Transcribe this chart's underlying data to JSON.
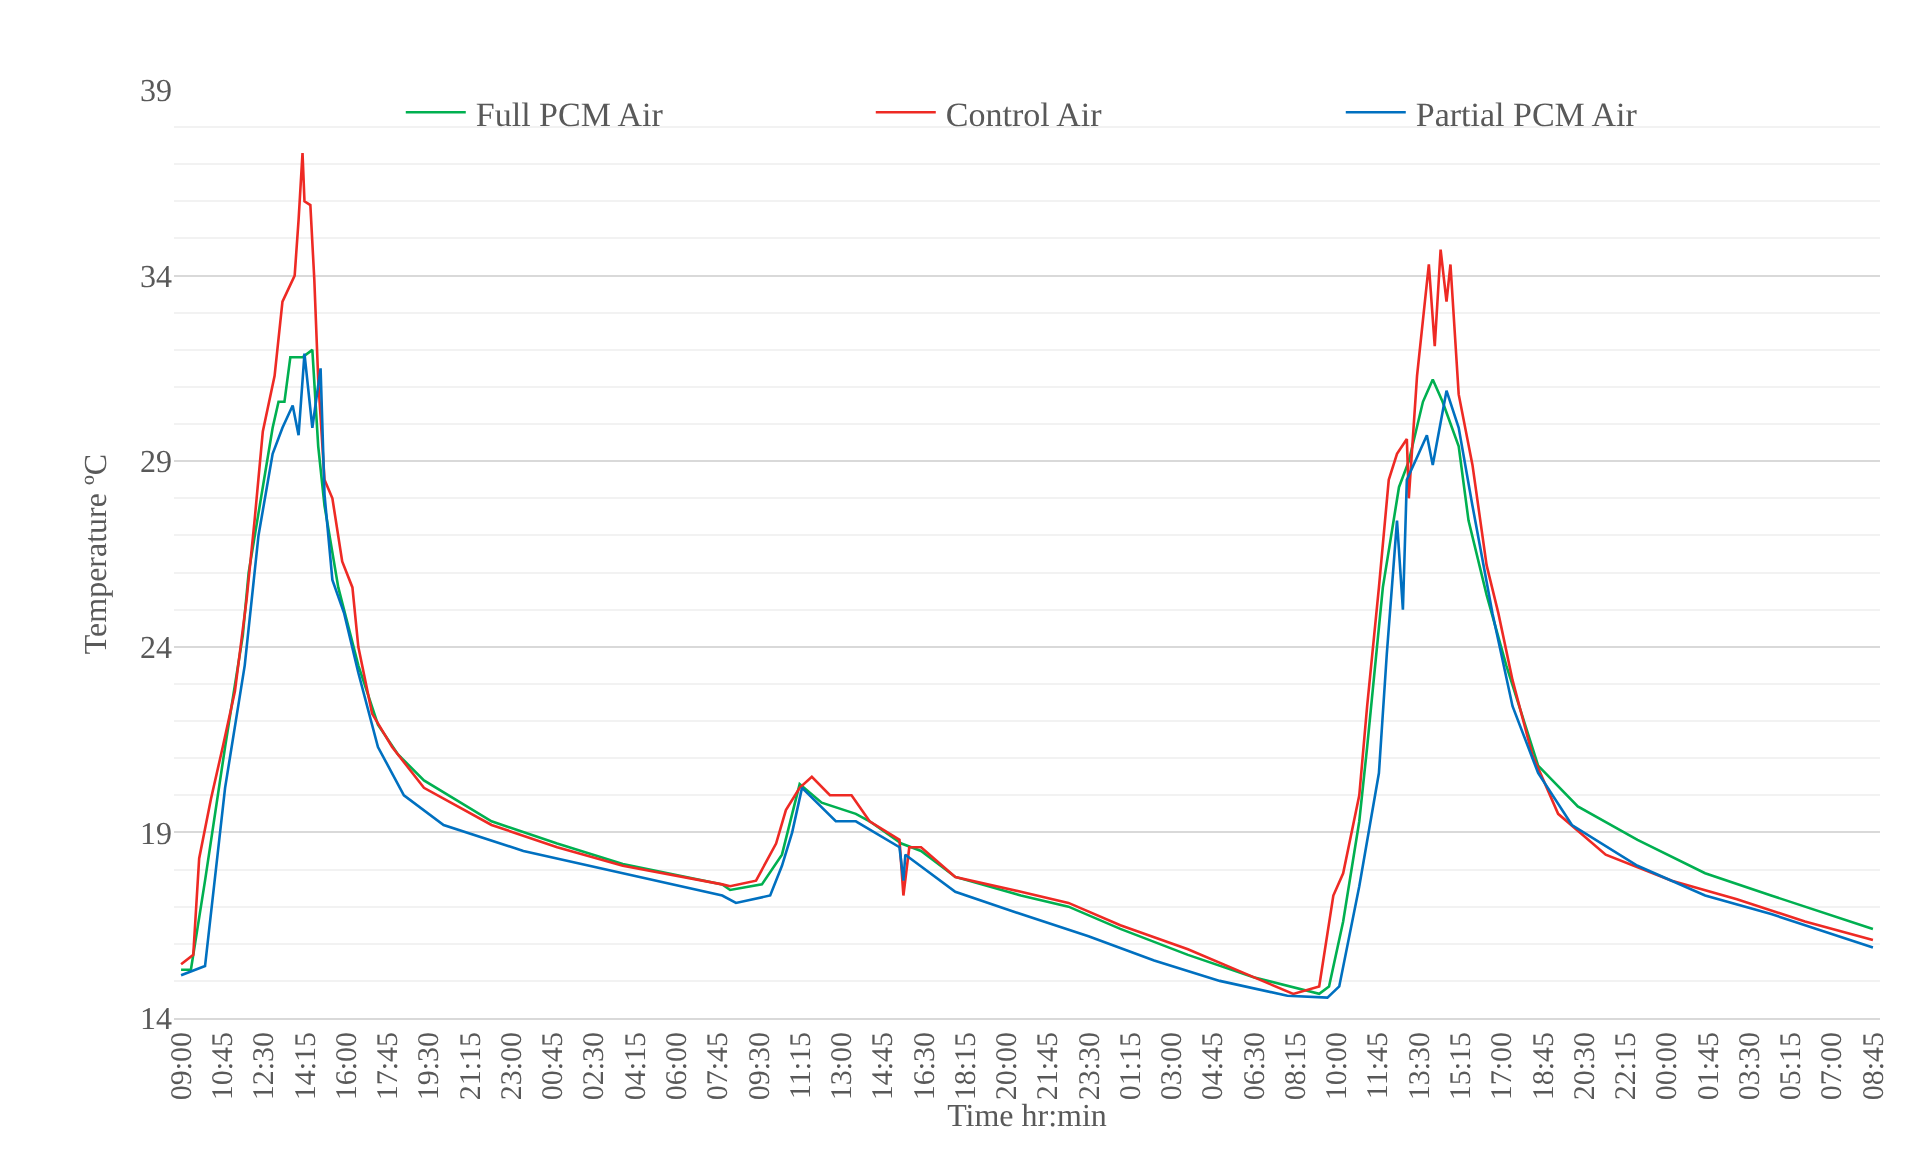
{
  "chart_data": {
    "type": "line",
    "xlabel": "Time hr:min",
    "ylabel": "Temperature ºC",
    "xlim": [
      "2000-01-01T08:42",
      "2000-01-04T09:03"
    ],
    "ylim": [
      14,
      39
    ],
    "xticks": [
      {
        "value": "2000-01-01T09:00",
        "label": "09:00"
      },
      {
        "value": "2000-01-01T10:45",
        "label": "10:45"
      },
      {
        "value": "2000-01-01T12:30",
        "label": "12:30"
      },
      {
        "value": "2000-01-01T14:15",
        "label": "14:15"
      },
      {
        "value": "2000-01-01T16:00",
        "label": "16:00"
      },
      {
        "value": "2000-01-01T17:45",
        "label": "17:45"
      },
      {
        "value": "2000-01-01T19:30",
        "label": "19:30"
      },
      {
        "value": "2000-01-01T21:15",
        "label": "21:15"
      },
      {
        "value": "2000-01-01T23:00",
        "label": "23:00"
      },
      {
        "value": "2000-01-02T00:45",
        "label": "00:45"
      },
      {
        "value": "2000-01-02T02:30",
        "label": "02:30"
      },
      {
        "value": "2000-01-02T04:15",
        "label": "04:15"
      },
      {
        "value": "2000-01-02T06:00",
        "label": "06:00"
      },
      {
        "value": "2000-01-02T07:45",
        "label": "07:45"
      },
      {
        "value": "2000-01-02T09:30",
        "label": "09:30"
      },
      {
        "value": "2000-01-02T11:15",
        "label": "11:15"
      },
      {
        "value": "2000-01-02T13:00",
        "label": "13:00"
      },
      {
        "value": "2000-01-02T14:45",
        "label": "14:45"
      },
      {
        "value": "2000-01-02T16:30",
        "label": "16:30"
      },
      {
        "value": "2000-01-02T18:15",
        "label": "18:15"
      },
      {
        "value": "2000-01-02T20:00",
        "label": "20:00"
      },
      {
        "value": "2000-01-02T21:45",
        "label": "21:45"
      },
      {
        "value": "2000-01-02T23:30",
        "label": "23:30"
      },
      {
        "value": "2000-01-03T01:15",
        "label": "01:15"
      },
      {
        "value": "2000-01-03T03:00",
        "label": "03:00"
      },
      {
        "value": "2000-01-03T04:45",
        "label": "04:45"
      },
      {
        "value": "2000-01-03T06:30",
        "label": "06:30"
      },
      {
        "value": "2000-01-03T08:15",
        "label": "08:15"
      },
      {
        "value": "2000-01-03T10:00",
        "label": "10:00"
      },
      {
        "value": "2000-01-03T11:45",
        "label": "11:45"
      },
      {
        "value": "2000-01-03T13:30",
        "label": "13:30"
      },
      {
        "value": "2000-01-03T15:15",
        "label": "15:15"
      },
      {
        "value": "2000-01-03T17:00",
        "label": "17:00"
      },
      {
        "value": "2000-01-03T18:45",
        "label": "18:45"
      },
      {
        "value": "2000-01-03T20:30",
        "label": "20:30"
      },
      {
        "value": "2000-01-03T22:15",
        "label": "22:15"
      },
      {
        "value": "2000-01-04T00:00",
        "label": "00:00"
      },
      {
        "value": "2000-01-04T01:45",
        "label": "01:45"
      },
      {
        "value": "2000-01-04T03:30",
        "label": "03:30"
      },
      {
        "value": "2000-01-04T05:15",
        "label": "05:15"
      },
      {
        "value": "2000-01-04T07:00",
        "label": "07:00"
      },
      {
        "value": "2000-01-04T08:45",
        "label": "08:45"
      }
    ],
    "yticks": [
      14,
      {
        "value": 15,
        "label": null
      },
      {
        "value": 16,
        "label": null
      },
      {
        "value": 17,
        "label": null
      },
      {
        "value": 18,
        "label": null
      },
      19,
      {
        "value": 20,
        "label": null
      },
      {
        "value": 21,
        "label": null
      },
      {
        "value": 22,
        "label": null
      },
      {
        "value": 23,
        "label": null
      },
      24,
      {
        "value": 25,
        "label": null
      },
      {
        "value": 26,
        "label": null
      },
      {
        "value": 27,
        "label": null
      },
      {
        "value": 28,
        "label": null
      },
      29,
      {
        "value": 30,
        "label": null
      },
      {
        "value": 31,
        "label": null
      },
      {
        "value": 32,
        "label": null
      },
      {
        "value": 33,
        "label": null
      },
      34,
      {
        "value": 35,
        "label": null
      },
      {
        "value": 36,
        "label": null
      },
      {
        "value": 37,
        "label": null
      },
      {
        "value": 38,
        "label": null
      },
      39
    ],
    "grid": "y",
    "legend": "top",
    "marker": "none",
    "line_style": "solid",
    "series": [
      {
        "name": "Full PCM Air",
        "color": "#00b050",
        "x": [
          "2000-01-01T09:00",
          "2000-01-01T09:25",
          "2000-01-01T10:01",
          "2000-01-01T10:52",
          "2000-01-01T11:37",
          "2000-01-01T11:52",
          "2000-01-01T12:17",
          "2000-01-01T12:53",
          "2000-01-01T13:08",
          "2000-01-01T13:23",
          "2000-01-01T13:38",
          "2000-01-01T14:09",
          "2000-01-01T14:34",
          "2000-01-01T14:49",
          "2000-01-01T15:05",
          "2000-01-01T15:40",
          "2000-01-01T16:31",
          "2000-01-01T17:21",
          "2000-01-01T18:12",
          "2000-01-01T19:18",
          "2000-01-01T22:10",
          "2000-01-02T00:57",
          "2000-01-02T03:44",
          "2000-01-02T07:57",
          "2000-01-02T08:17",
          "2000-01-02T09:38",
          "2000-01-02T10:29",
          "2000-01-02T10:55",
          "2000-01-02T11:14",
          "2000-01-02T12:10",
          "2000-01-02T13:37",
          "2000-01-02T14:12",
          "2000-01-02T15:33",
          "2000-01-02T16:23",
          "2000-01-02T17:50",
          "2000-01-02T20:37",
          "2000-01-02T22:38",
          "2000-01-03T00:50",
          "2000-01-03T03:42",
          "2000-01-03T06:29",
          "2000-01-03T09:16",
          "2000-01-03T09:41",
          "2000-01-03T10:17",
          "2000-01-03T10:58",
          "2000-01-03T11:18",
          "2000-01-03T11:58",
          "2000-01-03T12:39",
          "2000-01-03T13:04",
          "2000-01-03T13:40",
          "2000-01-03T14:05",
          "2000-01-03T14:30",
          "2000-01-03T15:11",
          "2000-01-03T15:36",
          "2000-01-03T16:22",
          "2000-01-03T17:12",
          "2000-01-03T18:33",
          "2000-01-03T20:14",
          "2000-01-03T22:46",
          "2000-01-04T01:38",
          "2000-01-04T04:26",
          "2000-01-04T08:45"
        ],
        "values": [
          15.3,
          15.3,
          17.7,
          21.3,
          24.3,
          26.0,
          27.6,
          29.9,
          30.6,
          30.6,
          31.8,
          31.8,
          32.0,
          29.4,
          27.8,
          25.6,
          23.5,
          21.9,
          21.1,
          20.4,
          19.3,
          18.7,
          18.15,
          17.6,
          17.45,
          17.6,
          18.4,
          19.5,
          20.3,
          19.8,
          19.5,
          19.3,
          18.7,
          18.5,
          17.8,
          17.3,
          17.0,
          16.4,
          15.7,
          15.1,
          14.65,
          14.85,
          16.6,
          19.3,
          21.3,
          25.6,
          28.3,
          29.0,
          30.6,
          31.2,
          30.6,
          29.4,
          27.4,
          25.4,
          23.5,
          20.8,
          19.7,
          18.8,
          17.9,
          17.3,
          16.4
        ]
      },
      {
        "name": "Control Air",
        "color": "#ee2a24",
        "x": [
          "2000-01-01T09:00",
          "2000-01-01T09:31",
          "2000-01-01T09:46",
          "2000-01-01T10:16",
          "2000-01-01T10:46",
          "2000-01-01T11:17",
          "2000-01-01T11:47",
          "2000-01-01T12:07",
          "2000-01-01T12:28",
          "2000-01-01T12:58",
          "2000-01-01T13:18",
          "2000-01-01T13:49",
          "2000-01-01T13:59",
          "2000-01-01T14:09",
          "2000-01-01T14:14",
          "2000-01-01T14:29",
          "2000-01-01T14:39",
          "2000-01-01T14:49",
          "2000-01-01T15:05",
          "2000-01-01T15:25",
          "2000-01-01T15:50",
          "2000-01-01T16:16",
          "2000-01-01T16:31",
          "2000-01-01T17:06",
          "2000-01-01T17:57",
          "2000-01-01T19:18",
          "2000-01-01T22:10",
          "2000-01-02T00:57",
          "2000-01-02T03:44",
          "2000-01-02T07:57",
          "2000-01-02T08:17",
          "2000-01-02T09:23",
          "2000-01-02T10:14",
          "2000-01-02T10:39",
          "2000-01-02T11:14",
          "2000-01-02T11:45",
          "2000-01-02T12:31",
          "2000-01-02T13:26",
          "2000-01-02T14:12",
          "2000-01-02T15:28",
          "2000-01-02T15:38",
          "2000-01-02T15:53",
          "2000-01-02T16:23",
          "2000-01-02T17:50",
          "2000-01-02T20:37",
          "2000-01-02T22:38",
          "2000-01-03T00:50",
          "2000-01-03T03:42",
          "2000-01-03T06:29",
          "2000-01-03T08:10",
          "2000-01-03T09:16",
          "2000-01-03T09:52",
          "2000-01-03T10:17",
          "2000-01-03T10:58",
          "2000-01-03T11:18",
          "2000-01-03T11:48",
          "2000-01-03T12:13",
          "2000-01-03T12:34",
          "2000-01-03T12:59",
          "2000-01-03T13:04",
          "2000-01-03T13:25",
          "2000-01-03T13:55",
          "2000-01-03T14:10",
          "2000-01-03T14:25",
          "2000-01-03T14:40",
          "2000-01-03T14:50",
          "2000-01-03T15:11",
          "2000-01-03T15:46",
          "2000-01-03T16:22",
          "2000-01-03T16:52",
          "2000-01-03T17:28",
          "2000-01-03T18:18",
          "2000-01-03T19:24",
          "2000-01-03T21:25",
          "2000-01-04T00:13",
          "2000-01-04T02:59",
          "2000-01-04T05:52",
          "2000-01-04T08:45"
        ],
        "values": [
          15.45,
          15.7,
          18.3,
          19.9,
          21.3,
          22.8,
          25.3,
          27.4,
          29.8,
          31.3,
          33.3,
          34.0,
          35.5,
          37.3,
          36.0,
          35.9,
          33.9,
          31.2,
          28.5,
          28.0,
          26.3,
          25.6,
          24.0,
          22.2,
          21.3,
          20.2,
          19.2,
          18.6,
          18.1,
          17.6,
          17.55,
          17.7,
          18.7,
          19.6,
          20.2,
          20.5,
          20.0,
          20.0,
          19.3,
          18.8,
          17.3,
          18.6,
          18.6,
          17.8,
          17.4,
          17.1,
          16.5,
          15.85,
          15.1,
          14.65,
          14.85,
          17.3,
          17.9,
          20.0,
          22.4,
          25.6,
          28.5,
          29.2,
          29.6,
          28.0,
          31.3,
          34.3,
          32.1,
          34.7,
          33.3,
          34.3,
          30.8,
          28.9,
          26.2,
          24.9,
          23.1,
          21.1,
          19.5,
          18.4,
          17.7,
          17.2,
          16.6,
          16.1
        ]
      },
      {
        "name": "Partial PCM Air",
        "color": "#0070c0",
        "x": [
          "2000-01-01T09:00",
          "2000-01-01T10:01",
          "2000-01-01T10:52",
          "2000-01-01T11:42",
          "2000-01-01T12:17",
          "2000-01-01T12:53",
          "2000-01-01T13:18",
          "2000-01-01T13:44",
          "2000-01-01T13:59",
          "2000-01-01T14:14",
          "2000-01-01T14:34",
          "2000-01-01T14:55",
          "2000-01-01T15:05",
          "2000-01-01T15:25",
          "2000-01-01T15:55",
          "2000-01-01T16:31",
          "2000-01-01T17:21",
          "2000-01-01T18:27",
          "2000-01-01T20:08",
          "2000-01-01T23:31",
          "2000-01-02T03:44",
          "2000-01-02T07:57",
          "2000-01-02T08:32",
          "2000-01-02T09:59",
          "2000-01-02T10:29",
          "2000-01-02T10:55",
          "2000-01-02T11:20",
          "2000-01-02T12:46",
          "2000-01-02T13:37",
          "2000-01-02T15:28",
          "2000-01-02T15:38",
          "2000-01-02T15:43",
          "2000-01-02T17:50",
          "2000-01-02T20:37",
          "2000-01-02T23:29",
          "2000-01-03T02:16",
          "2000-01-03T05:03",
          "2000-01-03T07:55",
          "2000-01-03T09:37",
          "2000-01-03T10:07",
          "2000-01-03T10:58",
          "2000-01-03T11:48",
          "2000-01-03T12:08",
          "2000-01-03T12:34",
          "2000-01-03T12:49",
          "2000-01-03T12:59",
          "2000-01-03T13:29",
          "2000-01-03T13:50",
          "2000-01-03T14:05",
          "2000-01-03T14:40",
          "2000-01-03T15:11",
          "2000-01-03T15:46",
          "2000-01-03T16:37",
          "2000-01-03T17:28",
          "2000-01-03T18:33",
          "2000-01-03T19:59",
          "2000-01-03T22:46",
          "2000-01-04T01:38",
          "2000-01-04T04:26",
          "2000-01-04T08:45"
        ],
        "values": [
          15.15,
          15.4,
          20.2,
          23.5,
          27.0,
          29.2,
          29.9,
          30.5,
          29.7,
          31.9,
          29.9,
          31.5,
          28.1,
          25.8,
          24.9,
          23.3,
          21.3,
          20.0,
          19.2,
          18.5,
          17.9,
          17.3,
          17.1,
          17.3,
          18.1,
          19.0,
          20.2,
          19.3,
          19.3,
          18.6,
          17.7,
          18.4,
          17.4,
          16.8,
          16.2,
          15.55,
          15.0,
          14.6,
          14.55,
          14.85,
          17.55,
          20.6,
          23.8,
          27.4,
          25.0,
          28.5,
          29.2,
          29.7,
          28.9,
          30.9,
          29.9,
          27.8,
          24.9,
          22.4,
          20.6,
          19.2,
          18.1,
          17.3,
          16.8,
          15.9
        ]
      }
    ]
  }
}
